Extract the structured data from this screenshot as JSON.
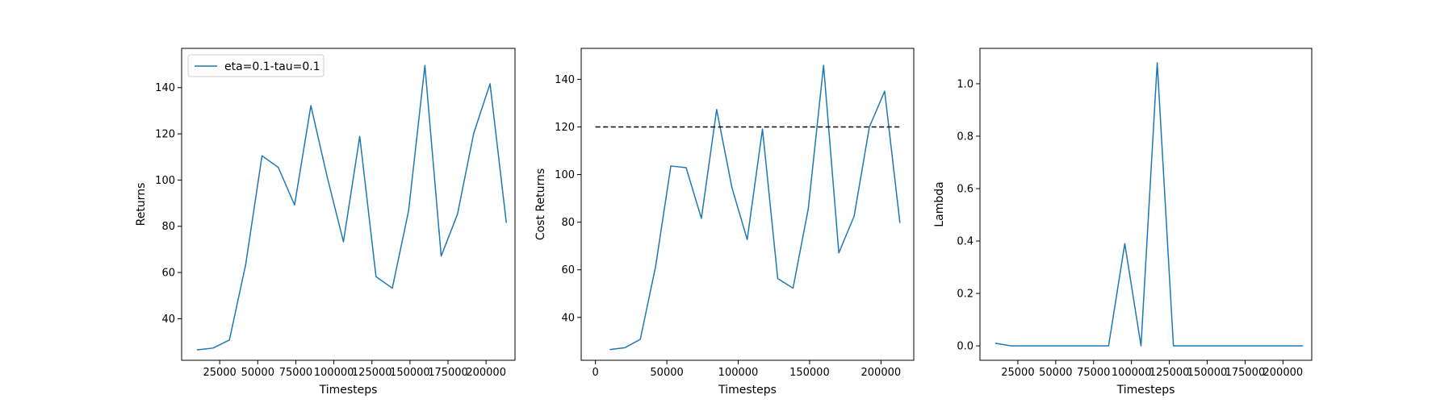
{
  "chart_data": [
    {
      "type": "line",
      "xlabel": "Timesteps",
      "ylabel": "Returns",
      "xlim": [
        0,
        219000
      ],
      "ylim": [
        22,
        157
      ],
      "xticks": [
        25000,
        50000,
        75000,
        100000,
        125000,
        150000,
        175000,
        200000
      ],
      "xtick_labels": [
        "25000",
        "50000",
        "75000",
        "100000",
        "125000",
        "150000",
        "175000",
        "200000"
      ],
      "yticks": [
        40,
        60,
        80,
        100,
        120,
        140
      ],
      "ytick_labels": [
        "40",
        "60",
        "80",
        "100",
        "120",
        "140"
      ],
      "legend": {
        "position": "upper left",
        "entries": [
          "eta=0.1-tau=0.1"
        ]
      },
      "grid": false,
      "series": [
        {
          "name": "eta=0.1-tau=0.1",
          "color": "#1f77b4",
          "x": [
            10000,
            20700,
            31400,
            42100,
            52800,
            63500,
            74200,
            84900,
            95600,
            106300,
            117000,
            127700,
            138400,
            149100,
            159800,
            170500,
            181200,
            191900,
            202600,
            213300
          ],
          "y": [
            26.5,
            27.3,
            30.8,
            63.5,
            110.5,
            105.5,
            89.2,
            132.2,
            101.4,
            73.3,
            118.9,
            58.2,
            53.2,
            86.7,
            149.6,
            67.1,
            85.2,
            120.3,
            141.7,
            81.5
          ]
        }
      ]
    },
    {
      "type": "line",
      "xlabel": "Timesteps",
      "ylabel": "Cost Returns",
      "xlim": [
        -10000,
        223000
      ],
      "ylim": [
        22,
        153
      ],
      "xticks": [
        0,
        50000,
        100000,
        150000,
        200000
      ],
      "xtick_labels": [
        "0",
        "50000",
        "100000",
        "150000",
        "200000"
      ],
      "yticks": [
        40,
        60,
        80,
        100,
        120,
        140
      ],
      "ytick_labels": [
        "40",
        "60",
        "80",
        "100",
        "120",
        "140"
      ],
      "grid": false,
      "threshold": {
        "y": 120,
        "x": [
          0,
          213300
        ],
        "style": "dashed",
        "color": "#000000"
      },
      "series": [
        {
          "color": "#1f77b4",
          "x": [
            10000,
            20700,
            31400,
            42100,
            52800,
            63500,
            74200,
            84900,
            95600,
            106300,
            117000,
            127700,
            138400,
            149100,
            159800,
            170500,
            181200,
            191900,
            202600,
            213300
          ],
          "y": [
            26.5,
            27.3,
            30.8,
            61.3,
            103.6,
            102.9,
            81.6,
            127.3,
            94.5,
            72.7,
            119.1,
            56.3,
            52.3,
            85.7,
            145.9,
            67.1,
            82.5,
            120.0,
            135.0,
            79.7
          ]
        }
      ]
    },
    {
      "type": "line",
      "xlabel": "Timesteps",
      "ylabel": "Lambda",
      "xlim": [
        0,
        219000
      ],
      "ylim": [
        -0.055,
        1.135
      ],
      "xticks": [
        25000,
        50000,
        75000,
        100000,
        125000,
        150000,
        175000,
        200000
      ],
      "xtick_labels": [
        "25000",
        "50000",
        "75000",
        "100000",
        "125000",
        "150000",
        "175000",
        "200000"
      ],
      "yticks": [
        0.0,
        0.2,
        0.4,
        0.6,
        0.8,
        1.0
      ],
      "ytick_labels": [
        "0.0",
        "0.2",
        "0.4",
        "0.6",
        "0.8",
        "1.0"
      ],
      "grid": false,
      "series": [
        {
          "color": "#1f77b4",
          "x": [
            10000,
            20700,
            31400,
            42100,
            52800,
            63500,
            74200,
            84900,
            95600,
            106300,
            117000,
            127700,
            138400,
            149100,
            159800,
            170500,
            181200,
            191900,
            202600,
            213300
          ],
          "y": [
            0.01,
            0.0,
            0.0,
            0.0,
            0.0,
            0.0,
            0.0,
            0.0,
            0.39,
            0.0,
            1.08,
            0.0,
            0.0,
            0.0,
            0.0,
            0.0,
            0.0,
            0.0,
            0.0,
            0.0
          ]
        }
      ]
    }
  ]
}
